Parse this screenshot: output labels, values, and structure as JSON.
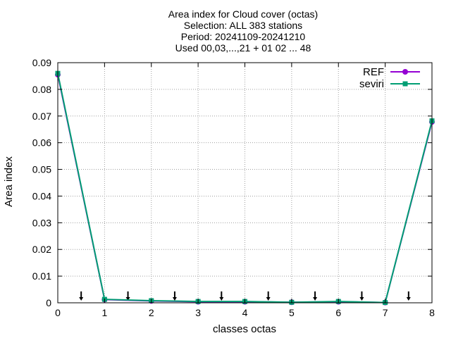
{
  "chart_data": {
    "type": "line",
    "title_lines": [
      "Area index  for Cloud cover (octas)",
      "Selection: ALL    383 stations",
      "Period: 20241109-20241210",
      "Used 00,03,...,21 + 01 02 ... 48"
    ],
    "xlabel": "classes octas",
    "ylabel": "Area index",
    "xlim": [
      0,
      8
    ],
    "ylim": [
      0,
      0.09
    ],
    "xticks": [
      0,
      1,
      2,
      3,
      4,
      5,
      6,
      7,
      8
    ],
    "yticks": [
      0,
      0.01,
      0.02,
      0.03,
      0.04,
      0.05,
      0.06,
      0.07,
      0.08,
      0.09
    ],
    "ytick_labels": [
      "0",
      "0.01",
      "0.02",
      "0.03",
      "0.04",
      "0.05",
      "0.06",
      "0.07",
      "0.08",
      "0.09"
    ],
    "grid": true,
    "legend_position": "top-right",
    "x": [
      0,
      1,
      2,
      3,
      4,
      5,
      6,
      7,
      8
    ],
    "series": [
      {
        "name": "REF",
        "color": "#9400d3",
        "values": [
          0.0855,
          0.0012,
          0.0007,
          0.0004,
          0.0004,
          0.0002,
          0.0004,
          0.0001,
          0.0678
        ]
      },
      {
        "name": "seviri",
        "color": "#009e73",
        "values": [
          0.086,
          0.0013,
          0.0008,
          0.0005,
          0.0005,
          0.0002,
          0.0005,
          0.0001,
          0.0682
        ]
      }
    ],
    "arrow_x": [
      0.5,
      1.5,
      2.5,
      3.5,
      4.5,
      5.5,
      6.5,
      7.5
    ],
    "arrow_y": 0.004
  }
}
